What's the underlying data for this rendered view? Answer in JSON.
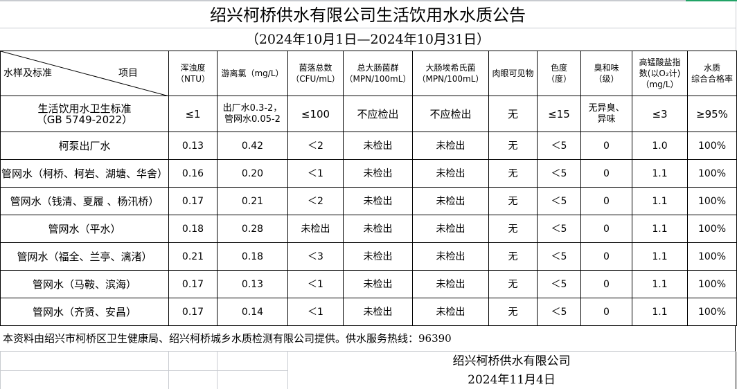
{
  "title": "绍兴柯桥供水有限公司生活饮用水水质公告",
  "subtitle": "（2024年10月1日—2024年10月31日）",
  "table": {
    "corner_left": "水样及标准",
    "corner_right": "项目",
    "headers": [
      [
        "浑浊度",
        "（NTU）"
      ],
      [
        "游离氯（mg/L）"
      ],
      [
        "菌落总数",
        "（CFU/mL）"
      ],
      [
        "总大肠菌群",
        "（MPN/100mL）"
      ],
      [
        "大肠埃希氏菌",
        "（MPN/100mL）"
      ],
      [
        "肉眼可见物"
      ],
      [
        "色度",
        "（度）"
      ],
      [
        "臭和味",
        "（级）"
      ],
      [
        "高锰酸盐指",
        "数(以O₂计)",
        "（mg/L）"
      ],
      [
        "水质",
        "综合合格率"
      ]
    ],
    "standard": {
      "name": [
        "生活饮用水卫生标准",
        "（GB 5749-2022）"
      ],
      "values": [
        [
          "≤1"
        ],
        [
          "出厂水0.3-2，",
          "管网水0.05-2"
        ],
        [
          "≤100"
        ],
        [
          "不应检出"
        ],
        [
          "不应检出"
        ],
        [
          "无"
        ],
        [
          "≤15"
        ],
        [
          "无异臭、",
          "异味"
        ],
        [
          "≤3"
        ],
        [
          "≥95%"
        ]
      ]
    },
    "rows": [
      {
        "name": "柯泵出厂水",
        "values": [
          "0.13",
          "0.42",
          "＜2",
          "未检出",
          "未检出",
          "无",
          "＜5",
          "0",
          "1.0",
          "100%"
        ]
      },
      {
        "name": "管网水（柯桥、柯岩、湖塘、华舍）",
        "values": [
          "0.16",
          "0.20",
          "＜1",
          "未检出",
          "未检出",
          "无",
          "＜5",
          "0",
          "1.1",
          "100%"
        ]
      },
      {
        "name": "管网水（钱清、夏履 、杨汛桥）",
        "values": [
          "0.17",
          "0.21",
          "＜2",
          "未检出",
          "未检出",
          "无",
          "＜5",
          "0",
          "1.1",
          "100%"
        ]
      },
      {
        "name": "管网水（平水）",
        "values": [
          "0.18",
          "0.28",
          "未检出",
          "未检出",
          "未检出",
          "无",
          "＜5",
          "0",
          "1.1",
          "100%"
        ]
      },
      {
        "name": "管网水（福全、兰亭、漓渚）",
        "values": [
          "0.21",
          "0.18",
          "＜3",
          "未检出",
          "未检出",
          "无",
          "＜5",
          "0",
          "1.1",
          "100%"
        ]
      },
      {
        "name": "管网水（马鞍、滨海）",
        "values": [
          "0.17",
          "0.13",
          "＜1",
          "未检出",
          "未检出",
          "无",
          "＜5",
          "0",
          "1.1",
          "100%"
        ]
      },
      {
        "name": "管网水（齐贤、安昌）",
        "values": [
          "0.17",
          "0.14",
          "＜1",
          "未检出",
          "未检出",
          "无",
          "＜5",
          "0",
          "1.1",
          "100%"
        ]
      }
    ]
  },
  "footnote": "本资料由绍兴市柯桥区卫生健康局、绍兴柯桥城乡水质检测有限公司提供。供水服务热线：96390",
  "signature": {
    "company": "绍兴柯桥供水有限公司",
    "date": "2024年11月4日"
  },
  "colors": {
    "selection_accent": "#21a366",
    "gridline": "#c8cbd0"
  }
}
